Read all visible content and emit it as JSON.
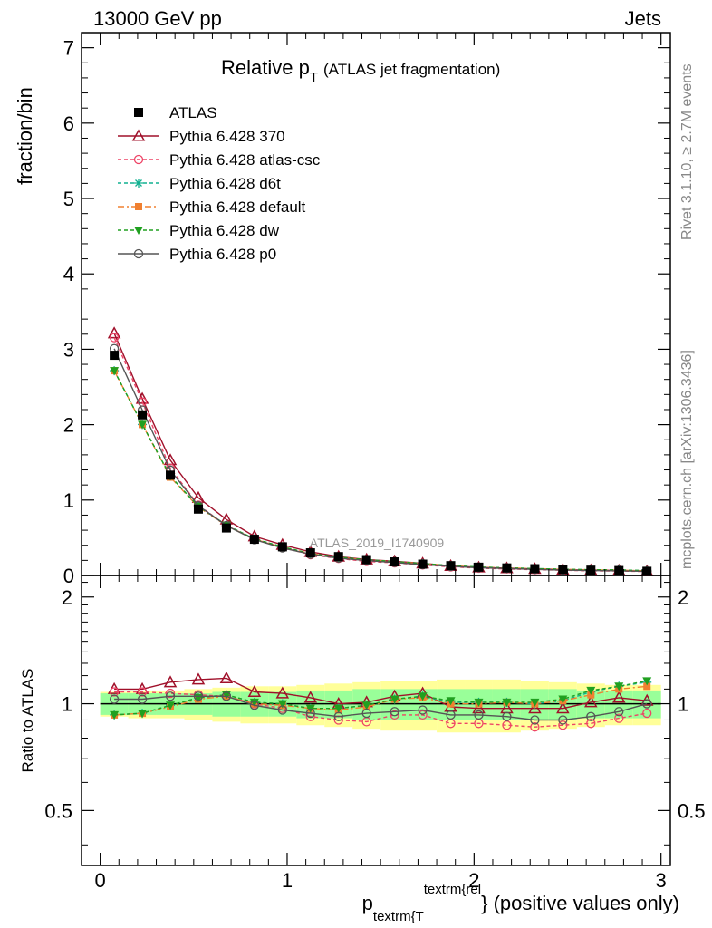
{
  "header": {
    "left": "13000 GeV pp",
    "right": "Jets"
  },
  "title": {
    "main": "Relative p",
    "sub": "T",
    "suffix": "(ATLAS jet fragmentation)"
  },
  "side_labels": {
    "top": "Rivet 3.1.10, ≥ 2.7M events",
    "bottom": "mcplots.cern.ch [arXiv:1306.3436]"
  },
  "watermark": "ATLAS_2019_I1740909",
  "chart_data": {
    "type": "line",
    "title": "Relative pT (ATLAS jet fragmentation)",
    "xlabel": {
      "p": "p",
      "sub": "textrm{T",
      "sup": "textrm{rel",
      "suffix": "} (positive values only)"
    },
    "ylabel": "fraction/bin",
    "ratio_ylabel": "Ratio to ATLAS",
    "xlim": [
      -0.1,
      3.05
    ],
    "ylim": [
      0,
      7.2
    ],
    "ratio_ylim": [
      0.35,
      2.3
    ],
    "xticks": [
      "0",
      "1",
      "2",
      "3"
    ],
    "yticks": [
      "0",
      "1",
      "2",
      "3",
      "4",
      "5",
      "6",
      "7"
    ],
    "ratio_yticks": [
      "0.5",
      "1",
      "2"
    ],
    "x": [
      0.075,
      0.225,
      0.375,
      0.525,
      0.675,
      0.825,
      0.975,
      1.125,
      1.275,
      1.425,
      1.575,
      1.725,
      1.875,
      2.025,
      2.175,
      2.325,
      2.475,
      2.625,
      2.775,
      2.925
    ],
    "data": {
      "name": "ATLAS",
      "values": [
        2.92,
        2.13,
        1.33,
        0.88,
        0.63,
        0.48,
        0.38,
        0.3,
        0.25,
        0.21,
        0.18,
        0.15,
        0.13,
        0.11,
        0.1,
        0.09,
        0.08,
        0.07,
        0.065,
        0.055
      ],
      "band_inner": [
        0.07,
        0.07,
        0.07,
        0.07,
        0.08,
        0.08,
        0.08,
        0.09,
        0.09,
        0.1,
        0.1,
        0.1,
        0.1,
        0.1,
        0.1,
        0.1,
        0.1,
        0.09,
        0.09,
        0.09
      ],
      "band_outer": [
        0.08,
        0.09,
        0.09,
        0.1,
        0.11,
        0.12,
        0.12,
        0.13,
        0.14,
        0.15,
        0.16,
        0.16,
        0.17,
        0.17,
        0.17,
        0.16,
        0.15,
        0.14,
        0.13,
        0.13
      ]
    },
    "series": [
      {
        "name": "Pythia 6.428 370",
        "color": "#a0102a",
        "dash": "",
        "marker": "triangle-open",
        "ratio": [
          1.1,
          1.1,
          1.15,
          1.17,
          1.18,
          1.08,
          1.07,
          1.04,
          1.0,
          1.01,
          1.05,
          1.07,
          0.98,
          0.97,
          0.97,
          0.97,
          0.97,
          1.01,
          1.04,
          1.02
        ]
      },
      {
        "name": "Pythia 6.428 atlas-csc",
        "color": "#ee4466",
        "dash": "4,3",
        "marker": "circle-open",
        "ratio": [
          1.08,
          1.08,
          1.07,
          1.06,
          1.05,
          1.0,
          0.97,
          0.92,
          0.9,
          0.89,
          0.93,
          0.93,
          0.88,
          0.88,
          0.87,
          0.86,
          0.87,
          0.88,
          0.91,
          0.94
        ]
      },
      {
        "name": "Pythia 6.428 d6t",
        "color": "#10b090",
        "dash": "4,3",
        "marker": "star",
        "ratio": [
          0.93,
          0.94,
          0.99,
          1.04,
          1.06,
          1.01,
          1.0,
          0.97,
          0.97,
          0.99,
          1.03,
          1.05,
          1.01,
          1.01,
          1.01,
          1.0,
          1.02,
          1.08,
          1.12,
          1.15
        ]
      },
      {
        "name": "Pythia 6.428 default",
        "color": "#f08030",
        "dash": "7,3,2,3",
        "marker": "square",
        "ratio": [
          0.93,
          0.94,
          0.98,
          1.03,
          1.05,
          1.0,
          0.99,
          0.97,
          0.96,
          0.98,
          1.03,
          1.04,
          1.0,
          1.0,
          1.01,
          1.0,
          1.02,
          1.06,
          1.1,
          1.12
        ]
      },
      {
        "name": "Pythia 6.428 dw",
        "color": "#20a020",
        "dash": "4,3",
        "marker": "triangle-down",
        "ratio": [
          0.93,
          0.94,
          0.99,
          1.04,
          1.06,
          1.01,
          1.0,
          0.97,
          0.97,
          0.99,
          1.03,
          1.05,
          1.02,
          1.01,
          1.01,
          1.01,
          1.03,
          1.09,
          1.12,
          1.16
        ]
      },
      {
        "name": "Pythia 6.428 p0",
        "color": "#555555",
        "dash": "",
        "marker": "circle-open",
        "ratio": [
          1.03,
          1.03,
          1.05,
          1.05,
          1.05,
          0.99,
          0.96,
          0.94,
          0.92,
          0.94,
          0.95,
          0.96,
          0.93,
          0.93,
          0.92,
          0.9,
          0.9,
          0.92,
          0.95,
          1.0
        ]
      }
    ]
  }
}
